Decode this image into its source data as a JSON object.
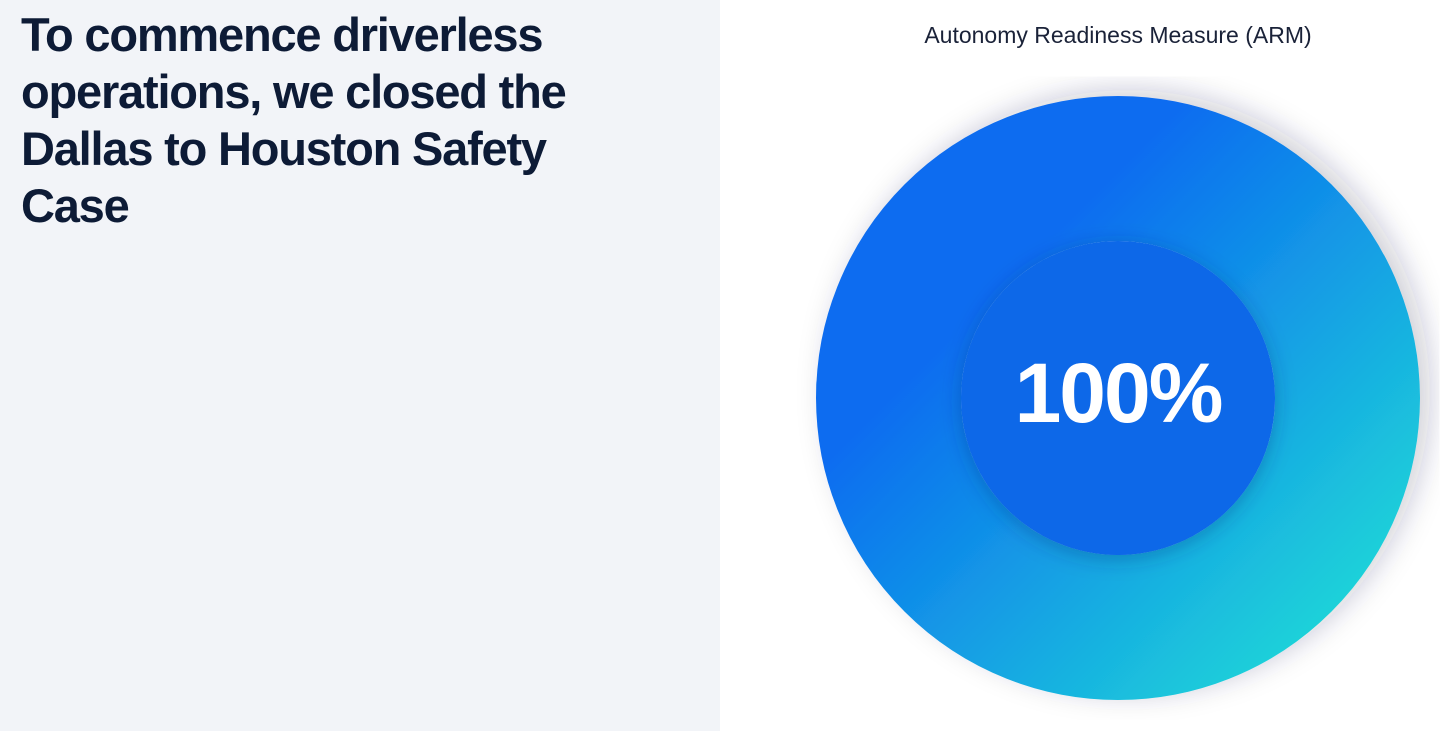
{
  "heading": "To commence driverless operations, we closed the Dallas to Houston Safety Case",
  "chart_data": {
    "type": "donut",
    "title": "Autonomy Readiness Measure (ARM)",
    "values": [
      100
    ],
    "value_labels": [
      "100%"
    ],
    "color": [
      "#1fd6d8",
      "#0a6cf0"
    ],
    "center_color": "#0767e8"
  }
}
